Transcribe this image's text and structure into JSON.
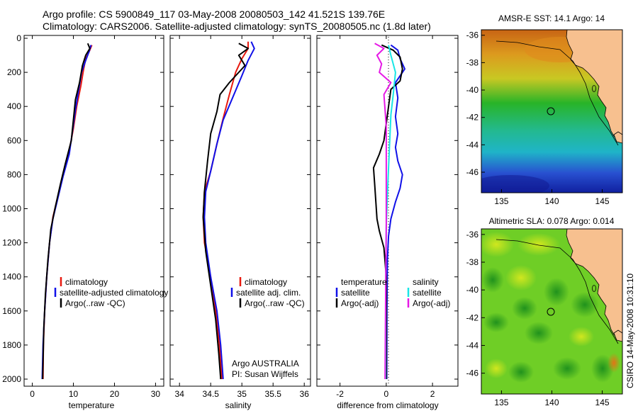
{
  "title_line1": "Argo profile: CS 5900849_117 03-May-2008 20080503_142 41.521S 139.76E",
  "title_line2": "Climatology: CARS2006. Satellite-adjusted climatology: synTS_20080505.nc (1.8d later)",
  "credit": "CSIRO 14-May-2008 10:31:10",
  "colors": {
    "red": "#e8190f",
    "blue": "#1010e8",
    "black": "#000000",
    "cyan": "#19e6e6",
    "magenta": "#e619e6",
    "land": "#f7c08f"
  },
  "chart_data": [
    {
      "type": "line",
      "ylim": [
        0,
        2050
      ],
      "yticks": [
        0,
        200,
        400,
        600,
        800,
        1000,
        1200,
        1400,
        1600,
        1800,
        2000
      ],
      "ytick_labels": [
        "0",
        "200",
        "400",
        "600",
        "800",
        "1000",
        "1200",
        "1400",
        "1600",
        "1800",
        "2000"
      ],
      "y_reversed": true,
      "xlim": [
        -2,
        32
      ],
      "xticks": [
        0,
        10,
        20,
        30
      ],
      "xtick_labels": [
        "0",
        "10",
        "20",
        "30"
      ],
      "xlabel": "temperature",
      "legend": [
        "climatology",
        "satellite-adjusted climatology",
        "Argo(..raw -QC)"
      ],
      "series": [
        {
          "name": "climatology",
          "color": "red",
          "points": [
            [
              14.5,
              40
            ],
            [
              14,
              70
            ],
            [
              13,
              120
            ],
            [
              12.5,
              180
            ],
            [
              11.8,
              280
            ],
            [
              10.8,
              400
            ],
            [
              10,
              530
            ],
            [
              9,
              660
            ],
            [
              7.5,
              800
            ],
            [
              6,
              950
            ],
            [
              5,
              1050
            ],
            [
              4.2,
              1200
            ],
            [
              3.5,
              1400
            ],
            [
              3,
              1600
            ],
            [
              2.7,
              1800
            ],
            [
              2.6,
              2000
            ]
          ]
        },
        {
          "name": "satellite-adjusted climatology",
          "color": "blue",
          "points": [
            [
              14.3,
              40
            ],
            [
              13.8,
              80
            ],
            [
              13,
              130
            ],
            [
              12,
              200
            ],
            [
              11.3,
              300
            ],
            [
              10.5,
              420
            ],
            [
              9.8,
              540
            ],
            [
              9,
              680
            ],
            [
              7.5,
              810
            ],
            [
              6,
              960
            ],
            [
              5,
              1060
            ],
            [
              4.2,
              1200
            ],
            [
              3.5,
              1400
            ],
            [
              3,
              1600
            ],
            [
              2.6,
              1800
            ],
            [
              2.4,
              2000
            ]
          ]
        },
        {
          "name": "Argo(..raw -QC)",
          "color": "black",
          "points": [
            [
              13.5,
              30
            ],
            [
              14,
              60
            ],
            [
              13,
              100
            ],
            [
              12.2,
              160
            ],
            [
              11.5,
              260
            ],
            [
              10.5,
              360
            ],
            [
              10,
              480
            ],
            [
              9.5,
              600
            ],
            [
              8,
              740
            ],
            [
              6.8,
              860
            ],
            [
              5.5,
              1000
            ],
            [
              4.5,
              1120
            ],
            [
              3.8,
              1300
            ],
            [
              3.2,
              1500
            ],
            [
              2.8,
              1700
            ],
            [
              2.6,
              1900
            ],
            [
              2.5,
              2000
            ]
          ]
        }
      ]
    },
    {
      "type": "line",
      "ylim": [
        0,
        2050
      ],
      "y_reversed": true,
      "xlim": [
        33.85,
        36.1
      ],
      "xticks": [
        34,
        34.5,
        35,
        35.5,
        36
      ],
      "xtick_labels": [
        "34",
        "34.5",
        "35",
        "35.5",
        "36"
      ],
      "xlabel": "salinity",
      "legend": [
        "climatology",
        "satellite adj. clim.",
        "Argo(..raw -QC)"
      ],
      "annotations": [
        "Argo AUSTRALIA",
        "PI: Susan Wijffels"
      ],
      "series": [
        {
          "name": "climatology",
          "color": "red",
          "points": [
            [
              35.1,
              20
            ],
            [
              35.1,
              60
            ],
            [
              35,
              120
            ],
            [
              34.9,
              200
            ],
            [
              34.8,
              330
            ],
            [
              34.7,
              470
            ],
            [
              34.6,
              620
            ],
            [
              34.5,
              780
            ],
            [
              34.4,
              900
            ],
            [
              34.38,
              1050
            ],
            [
              34.4,
              1200
            ],
            [
              34.5,
              1400
            ],
            [
              34.58,
              1600
            ],
            [
              34.64,
              1800
            ],
            [
              34.68,
              2000
            ]
          ]
        },
        {
          "name": "satellite adj. clim.",
          "color": "blue",
          "points": [
            [
              35.15,
              20
            ],
            [
              35.2,
              60
            ],
            [
              35.1,
              130
            ],
            [
              35.0,
              220
            ],
            [
              34.85,
              350
            ],
            [
              34.7,
              480
            ],
            [
              34.6,
              620
            ],
            [
              34.5,
              780
            ],
            [
              34.42,
              900
            ],
            [
              34.4,
              1050
            ],
            [
              34.42,
              1200
            ],
            [
              34.5,
              1400
            ],
            [
              34.6,
              1600
            ],
            [
              34.66,
              1800
            ],
            [
              34.7,
              2000
            ]
          ]
        },
        {
          "name": "Argo(..raw -QC)",
          "color": "black",
          "points": [
            [
              34.95,
              30
            ],
            [
              35.1,
              60
            ],
            [
              34.95,
              100
            ],
            [
              35.05,
              160
            ],
            [
              34.8,
              260
            ],
            [
              34.65,
              330
            ],
            [
              34.6,
              430
            ],
            [
              34.5,
              560
            ],
            [
              34.45,
              720
            ],
            [
              34.4,
              900
            ],
            [
              34.38,
              1050
            ],
            [
              34.42,
              1250
            ],
            [
              34.5,
              1450
            ],
            [
              34.58,
              1650
            ],
            [
              34.63,
              1850
            ],
            [
              34.66,
              2000
            ]
          ]
        }
      ]
    },
    {
      "type": "line",
      "ylim": [
        0,
        2050
      ],
      "y_reversed": true,
      "xlim": [
        -3,
        3.1
      ],
      "xticks": [
        -2,
        0,
        2
      ],
      "xtick_labels": [
        "-2",
        "0",
        "2"
      ],
      "xlabel": "difference from climatology",
      "legend": [
        "temperature",
        "satellite",
        "Argo(-adj)",
        "salinity",
        "satellite",
        "Argo(-adj)"
      ],
      "series": [
        {
          "name": "temperature satellite",
          "color": "blue",
          "points": [
            [
              0.2,
              40
            ],
            [
              0.5,
              70
            ],
            [
              0.6,
              120
            ],
            [
              0.8,
              180
            ],
            [
              0.4,
              260
            ],
            [
              0.5,
              350
            ],
            [
              0.4,
              460
            ],
            [
              0.5,
              560
            ],
            [
              0.4,
              640
            ],
            [
              0.5,
              720
            ],
            [
              0.7,
              800
            ],
            [
              0.6,
              880
            ],
            [
              0.4,
              960
            ],
            [
              0.2,
              1060
            ],
            [
              0.1,
              1160
            ],
            [
              0.05,
              1300
            ],
            [
              0.03,
              1600
            ],
            [
              0.02,
              2000
            ]
          ]
        },
        {
          "name": "temperature Argo(-adj)",
          "color": "black",
          "points": [
            [
              -0.2,
              40
            ],
            [
              0.3,
              70
            ],
            [
              0.6,
              110
            ],
            [
              0.7,
              180
            ],
            [
              0.6,
              250
            ],
            [
              0.2,
              300
            ],
            [
              0.1,
              400
            ],
            [
              0,
              500
            ],
            [
              -0.1,
              600
            ],
            [
              -0.3,
              680
            ],
            [
              -0.55,
              760
            ],
            [
              -0.5,
              860
            ],
            [
              -0.45,
              960
            ],
            [
              -0.4,
              1060
            ],
            [
              -0.3,
              1130
            ],
            [
              -0.1,
              1230
            ],
            [
              0,
              1400
            ],
            [
              0,
              2000
            ]
          ]
        },
        {
          "name": "salinity satellite",
          "color": "cyan",
          "points": [
            [
              0.1,
              40
            ],
            [
              0.2,
              100
            ],
            [
              0.4,
              200
            ],
            [
              0.3,
              330
            ],
            [
              0.2,
              450
            ],
            [
              0.15,
              600
            ],
            [
              0.1,
              760
            ],
            [
              0.05,
              920
            ],
            [
              0,
              1100
            ],
            [
              -0.02,
              1400
            ],
            [
              -0.03,
              2000
            ]
          ]
        },
        {
          "name": "salinity Argo(-adj)",
          "color": "magenta",
          "points": [
            [
              -0.5,
              30
            ],
            [
              -0.1,
              60
            ],
            [
              -0.4,
              100
            ],
            [
              -0.2,
              150
            ],
            [
              -0.3,
              200
            ],
            [
              0.2,
              260
            ],
            [
              -0.1,
              330
            ],
            [
              -0.05,
              420
            ],
            [
              0,
              520
            ],
            [
              0,
              700
            ],
            [
              0,
              900
            ],
            [
              0,
              1100
            ],
            [
              -0.02,
              1400
            ],
            [
              -0.05,
              2000
            ]
          ]
        }
      ]
    }
  ],
  "maps": [
    {
      "title": "AMSR-E SST: 14.1 Argo: 14",
      "lon_range": [
        133,
        147
      ],
      "lat_range": [
        -47.5,
        -35.6
      ],
      "xtick_labels": [
        "135",
        "140",
        "145"
      ],
      "ytick_labels": [
        "-36",
        "-38",
        "-40",
        "-42",
        "-44",
        "-46"
      ],
      "marker": [
        139.76,
        -41.52
      ]
    },
    {
      "title": "Altimetric SLA: 0.078 Argo: 0.014",
      "lon_range": [
        133,
        147
      ],
      "lat_range": [
        -47.5,
        -35.6
      ],
      "xtick_labels": [
        "135",
        "140",
        "145"
      ],
      "ytick_labels": [
        "-36",
        "-38",
        "-40",
        "-42",
        "-44",
        "-46"
      ],
      "marker": [
        139.76,
        -41.52
      ]
    }
  ]
}
